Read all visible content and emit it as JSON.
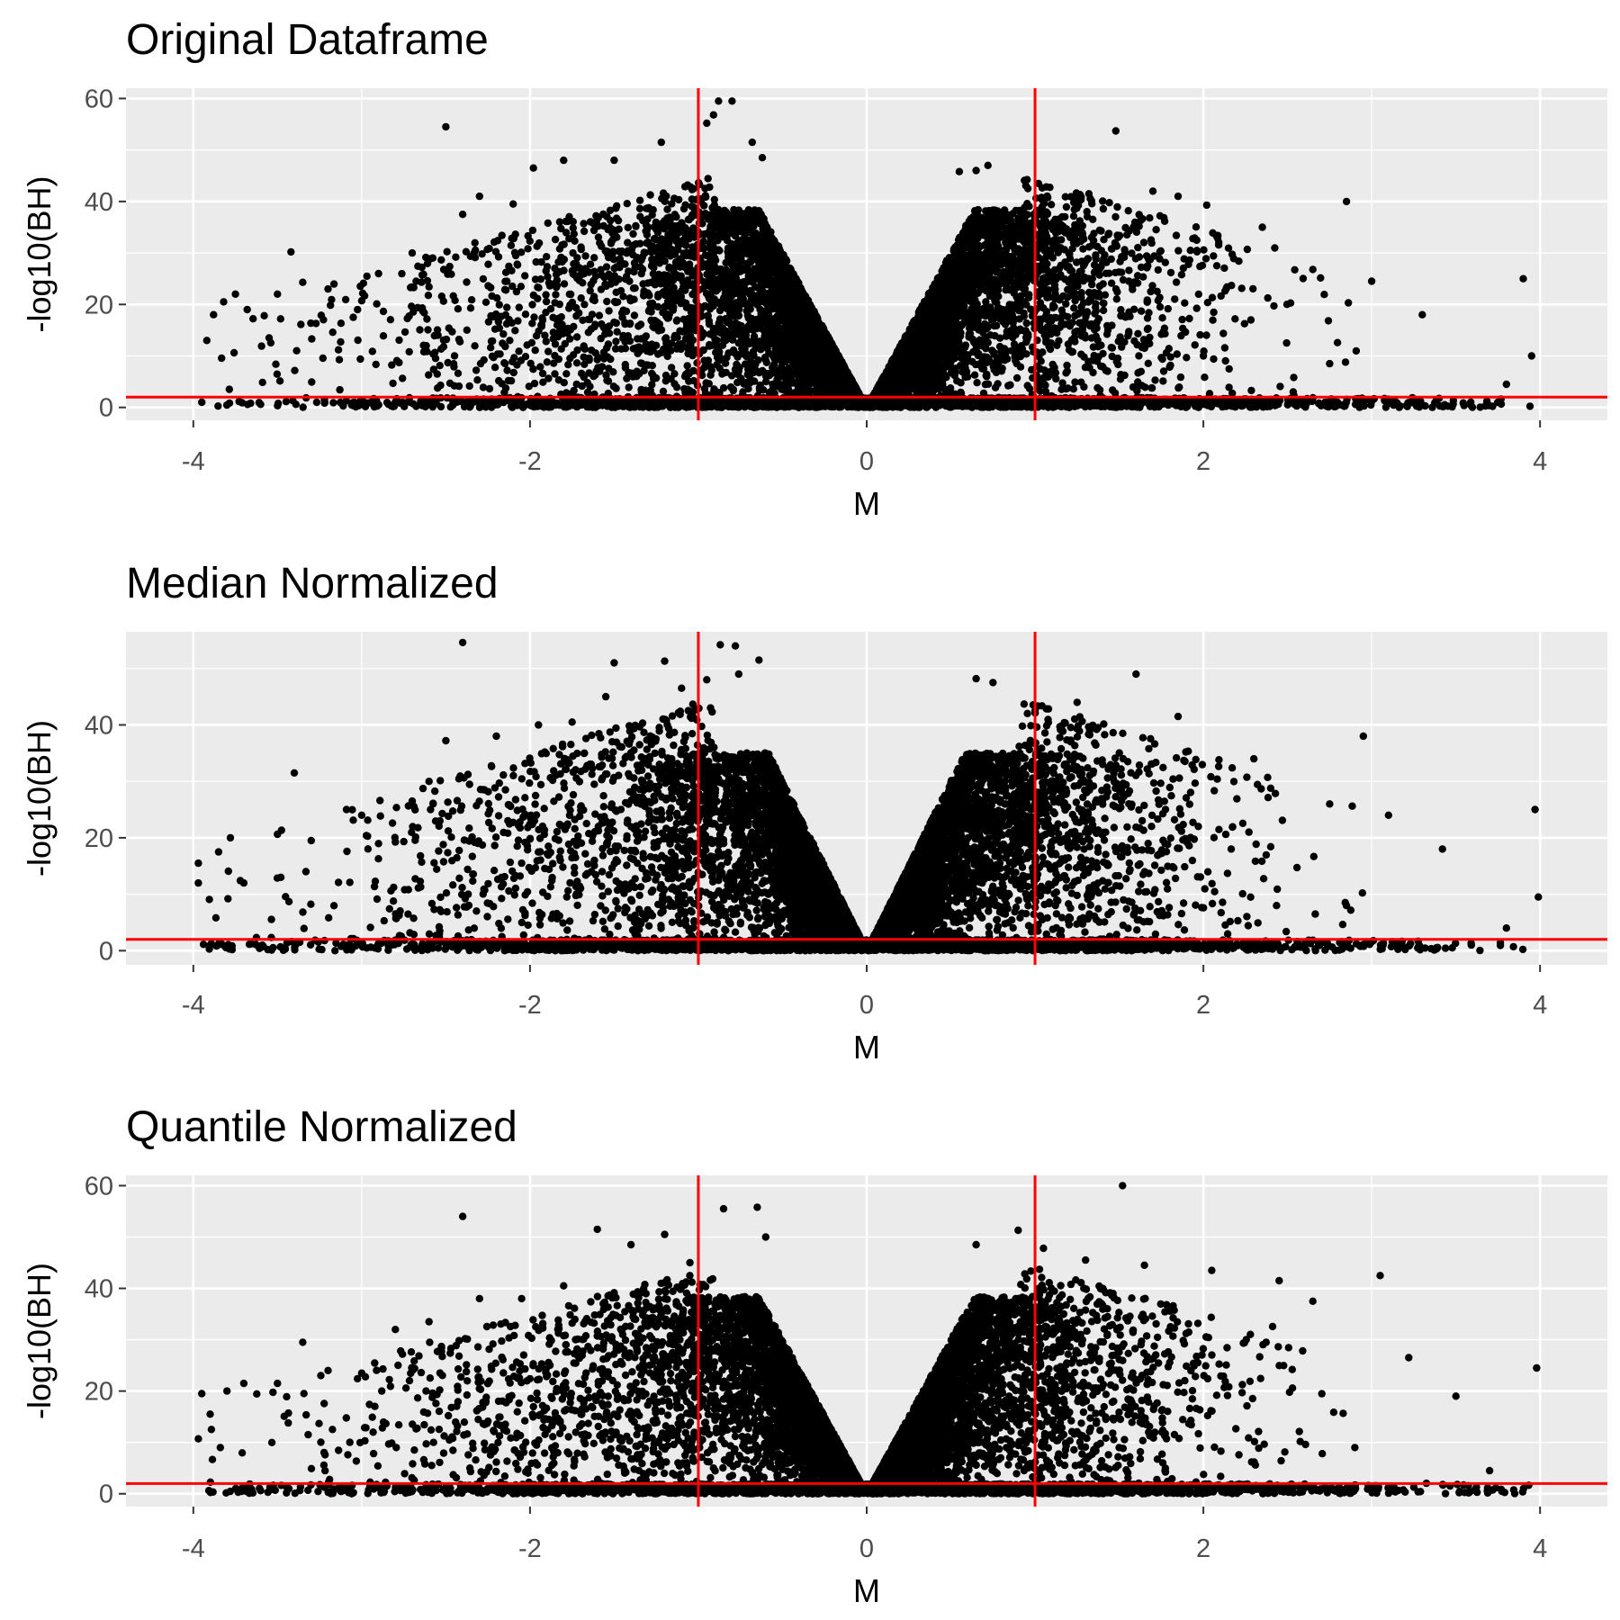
{
  "chart_data": [
    {
      "type": "scatter",
      "title": "Original Dataframe",
      "xlabel": "M",
      "ylabel": "-log10(BH)",
      "xlim": [
        -4.4,
        4.4
      ],
      "ylim": [
        -2.5,
        62
      ],
      "xticks": [
        -4,
        -2,
        0,
        2,
        4
      ],
      "yticks": [
        0,
        20,
        40,
        60
      ],
      "x_tick_labels": [
        "-4",
        "-2",
        "0",
        "2",
        "4"
      ],
      "y_tick_labels": [
        "0",
        "20",
        "40",
        "60"
      ],
      "grid": true,
      "point_color": "#000000",
      "reference_lines": {
        "color": "#ff0000",
        "vertical_x": [
          -1,
          1
        ],
        "horizontal_y": 2
      },
      "highlight_points": [
        [
          -3.95,
          1.0
        ],
        [
          -3.92,
          13.0
        ],
        [
          -3.88,
          18.0
        ],
        [
          -3.82,
          20.5
        ],
        [
          -3.75,
          22.0
        ],
        [
          -3.68,
          19.0
        ],
        [
          -3.6,
          0.6
        ],
        [
          -3.55,
          13.5
        ],
        [
          -3.5,
          22.0
        ],
        [
          -3.42,
          30.2
        ],
        [
          -3.35,
          24.3
        ],
        [
          -3.2,
          23.0
        ],
        [
          -3.05,
          17.5
        ],
        [
          -2.9,
          26.0
        ],
        [
          -2.7,
          30.0
        ],
        [
          -2.5,
          54.5
        ],
        [
          -2.4,
          37.5
        ],
        [
          -2.3,
          41.0
        ],
        [
          -2.1,
          39.5
        ],
        [
          -1.98,
          46.5
        ],
        [
          -1.8,
          48.0
        ],
        [
          -1.5,
          48.0
        ],
        [
          -1.22,
          51.5
        ],
        [
          -0.95,
          55.2
        ],
        [
          -0.91,
          56.8
        ],
        [
          -0.88,
          59.5
        ],
        [
          -0.8,
          59.5
        ],
        [
          -0.68,
          51.5
        ],
        [
          -0.62,
          48.5
        ],
        [
          0.55,
          45.8
        ],
        [
          0.65,
          46.0
        ],
        [
          0.72,
          47.0
        ],
        [
          1.32,
          41.5
        ],
        [
          1.48,
          53.7
        ],
        [
          1.7,
          42.0
        ],
        [
          1.85,
          41.0
        ],
        [
          2.02,
          39.3
        ],
        [
          2.35,
          35.0
        ],
        [
          2.65,
          26.8
        ],
        [
          2.85,
          40.0
        ],
        [
          3.0,
          24.5
        ],
        [
          3.3,
          18.0
        ],
        [
          3.9,
          25.0
        ],
        [
          3.95,
          10.0
        ],
        [
          3.8,
          4.5
        ],
        [
          2.75,
          8.5
        ],
        [
          2.0,
          10.0
        ]
      ]
    },
    {
      "type": "scatter",
      "title": "Median Normalized",
      "xlabel": "M",
      "ylabel": "-log10(BH)",
      "xlim": [
        -4.4,
        4.4
      ],
      "ylim": [
        -2.5,
        56.5
      ],
      "xticks": [
        -4,
        -2,
        0,
        2,
        4
      ],
      "yticks": [
        0,
        20,
        40
      ],
      "x_tick_labels": [
        "-4",
        "-2",
        "0",
        "2",
        "4"
      ],
      "y_tick_labels": [
        "0",
        "20",
        "40"
      ],
      "grid": true,
      "point_color": "#000000",
      "reference_lines": {
        "color": "#ff0000",
        "vertical_x": [
          -1,
          1
        ],
        "horizontal_y": 2
      },
      "highlight_points": [
        [
          -3.97,
          15.5
        ],
        [
          -3.97,
          12.0
        ],
        [
          -3.85,
          17.5
        ],
        [
          -3.78,
          20.0
        ],
        [
          -3.7,
          12.0
        ],
        [
          -3.6,
          0.6
        ],
        [
          -3.48,
          13.0
        ],
        [
          -3.4,
          31.5
        ],
        [
          -3.3,
          19.5
        ],
        [
          -3.0,
          24.0
        ],
        [
          -2.7,
          26.5
        ],
        [
          -2.6,
          30.0
        ],
        [
          -2.5,
          37.2
        ],
        [
          -2.4,
          54.6
        ],
        [
          -2.2,
          38.0
        ],
        [
          -1.95,
          40.0
        ],
        [
          -1.75,
          40.5
        ],
        [
          -1.55,
          45.0
        ],
        [
          -1.5,
          51.0
        ],
        [
          -1.2,
          51.3
        ],
        [
          -1.1,
          46.5
        ],
        [
          -0.95,
          48.0
        ],
        [
          -0.87,
          54.2
        ],
        [
          -0.78,
          54.0
        ],
        [
          -0.64,
          51.5
        ],
        [
          -0.76,
          49.0
        ],
        [
          0.65,
          48.2
        ],
        [
          0.75,
          47.5
        ],
        [
          1.0,
          42.5
        ],
        [
          1.25,
          44.0
        ],
        [
          1.6,
          49.0
        ],
        [
          1.85,
          41.5
        ],
        [
          2.3,
          34.0
        ],
        [
          2.95,
          38.0
        ],
        [
          2.75,
          26.0
        ],
        [
          3.1,
          24.0
        ],
        [
          3.42,
          18.0
        ],
        [
          3.97,
          25.0
        ],
        [
          3.99,
          9.5
        ],
        [
          3.8,
          4.0
        ],
        [
          2.85,
          8.0
        ]
      ]
    },
    {
      "type": "scatter",
      "title": "Quantile Normalized",
      "xlabel": "M",
      "ylabel": "-log10(BH)",
      "xlim": [
        -4.4,
        4.4
      ],
      "ylim": [
        -2.5,
        62
      ],
      "xticks": [
        -4,
        -2,
        0,
        2,
        4
      ],
      "yticks": [
        0,
        20,
        40,
        60
      ],
      "x_tick_labels": [
        "-4",
        "-2",
        "0",
        "2",
        "4"
      ],
      "y_tick_labels": [
        "0",
        "20",
        "40",
        "60"
      ],
      "grid": true,
      "point_color": "#000000",
      "reference_lines": {
        "color": "#ff0000",
        "vertical_x": [
          -1,
          1
        ],
        "horizontal_y": 2
      },
      "highlight_points": [
        [
          -3.97,
          10.7
        ],
        [
          -3.95,
          19.5
        ],
        [
          -3.9,
          15.5
        ],
        [
          -3.8,
          20.0
        ],
        [
          -3.7,
          21.5
        ],
        [
          -3.6,
          0.6
        ],
        [
          -3.5,
          21.5
        ],
        [
          -3.35,
          29.5
        ],
        [
          -3.2,
          24.0
        ],
        [
          -3.0,
          23.5
        ],
        [
          -2.8,
          32.0
        ],
        [
          -2.6,
          33.5
        ],
        [
          -2.4,
          54.0
        ],
        [
          -2.3,
          38.0
        ],
        [
          -2.05,
          38.0
        ],
        [
          -1.8,
          40.5
        ],
        [
          -1.6,
          51.5
        ],
        [
          -1.4,
          48.5
        ],
        [
          -1.2,
          50.5
        ],
        [
          -1.05,
          45.0
        ],
        [
          -0.85,
          55.5
        ],
        [
          -0.65,
          55.8
        ],
        [
          -0.6,
          50.0
        ],
        [
          0.65,
          48.5
        ],
        [
          0.9,
          51.3
        ],
        [
          1.05,
          47.8
        ],
        [
          1.3,
          45.5
        ],
        [
          1.52,
          60.0
        ],
        [
          1.65,
          44.5
        ],
        [
          2.05,
          43.5
        ],
        [
          2.45,
          41.5
        ],
        [
          2.65,
          37.5
        ],
        [
          3.05,
          42.5
        ],
        [
          3.22,
          26.5
        ],
        [
          3.5,
          19.0
        ],
        [
          3.98,
          24.5
        ],
        [
          3.7,
          4.5
        ],
        [
          2.9,
          9.0
        ]
      ]
    }
  ]
}
